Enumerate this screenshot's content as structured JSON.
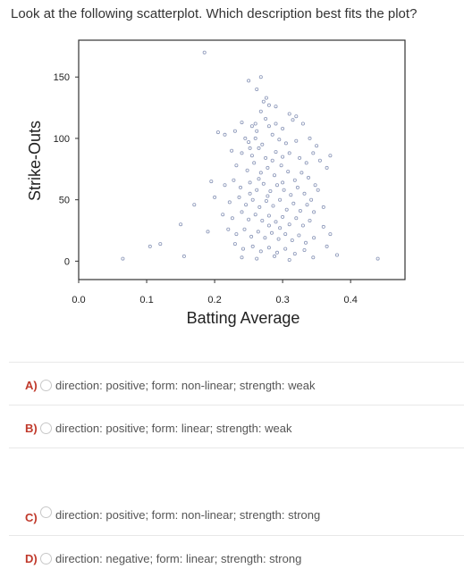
{
  "question": "Look at the following scatterplot. Which description best fits the plot?",
  "chart_data": {
    "type": "scatter",
    "xlabel": "Batting Average",
    "ylabel": "Strike-Outs",
    "xlim": [
      0.0,
      0.48
    ],
    "ylim": [
      -15,
      180
    ],
    "x_ticks": [
      "0.0",
      "0.1",
      "0.2",
      "0.3",
      "0.4"
    ],
    "y_ticks": [
      "0",
      "50",
      "100",
      "150"
    ],
    "grid": false,
    "marker_color": "#8a96b8",
    "points": [
      [
        0.185,
        170
      ],
      [
        0.25,
        147
      ],
      [
        0.268,
        150
      ],
      [
        0.262,
        140
      ],
      [
        0.276,
        133
      ],
      [
        0.272,
        130
      ],
      [
        0.28,
        127
      ],
      [
        0.268,
        122
      ],
      [
        0.29,
        126
      ],
      [
        0.31,
        120
      ],
      [
        0.32,
        118
      ],
      [
        0.33,
        112
      ],
      [
        0.24,
        113
      ],
      [
        0.255,
        110
      ],
      [
        0.26,
        112
      ],
      [
        0.275,
        116
      ],
      [
        0.28,
        110
      ],
      [
        0.29,
        112
      ],
      [
        0.3,
        108
      ],
      [
        0.315,
        115
      ],
      [
        0.205,
        105
      ],
      [
        0.215,
        103
      ],
      [
        0.23,
        106
      ],
      [
        0.245,
        100
      ],
      [
        0.25,
        97
      ],
      [
        0.26,
        100
      ],
      [
        0.27,
        95
      ],
      [
        0.285,
        103
      ],
      [
        0.295,
        99
      ],
      [
        0.305,
        96
      ],
      [
        0.32,
        98
      ],
      [
        0.34,
        100
      ],
      [
        0.35,
        94
      ],
      [
        0.37,
        86
      ],
      [
        0.225,
        90
      ],
      [
        0.24,
        88
      ],
      [
        0.255,
        86
      ],
      [
        0.265,
        92
      ],
      [
        0.275,
        84
      ],
      [
        0.29,
        89
      ],
      [
        0.3,
        85
      ],
      [
        0.31,
        88
      ],
      [
        0.325,
        84
      ],
      [
        0.335,
        80
      ],
      [
        0.345,
        88
      ],
      [
        0.355,
        82
      ],
      [
        0.365,
        76
      ],
      [
        0.232,
        78
      ],
      [
        0.248,
        74
      ],
      [
        0.258,
        80
      ],
      [
        0.268,
        72
      ],
      [
        0.278,
        76
      ],
      [
        0.288,
        70
      ],
      [
        0.298,
        78
      ],
      [
        0.308,
        73
      ],
      [
        0.318,
        66
      ],
      [
        0.328,
        72
      ],
      [
        0.338,
        68
      ],
      [
        0.348,
        62
      ],
      [
        0.195,
        65
      ],
      [
        0.215,
        62
      ],
      [
        0.228,
        66
      ],
      [
        0.238,
        60
      ],
      [
        0.252,
        64
      ],
      [
        0.262,
        58
      ],
      [
        0.272,
        63
      ],
      [
        0.282,
        57
      ],
      [
        0.292,
        62
      ],
      [
        0.302,
        58
      ],
      [
        0.312,
        54
      ],
      [
        0.322,
        60
      ],
      [
        0.332,
        55
      ],
      [
        0.342,
        50
      ],
      [
        0.352,
        58
      ],
      [
        0.17,
        46
      ],
      [
        0.2,
        52
      ],
      [
        0.222,
        48
      ],
      [
        0.236,
        52
      ],
      [
        0.246,
        46
      ],
      [
        0.256,
        50
      ],
      [
        0.266,
        44
      ],
      [
        0.276,
        49
      ],
      [
        0.286,
        45
      ],
      [
        0.296,
        50
      ],
      [
        0.306,
        42
      ],
      [
        0.316,
        47
      ],
      [
        0.326,
        41
      ],
      [
        0.336,
        46
      ],
      [
        0.346,
        40
      ],
      [
        0.36,
        44
      ],
      [
        0.212,
        38
      ],
      [
        0.226,
        35
      ],
      [
        0.24,
        40
      ],
      [
        0.25,
        34
      ],
      [
        0.26,
        38
      ],
      [
        0.27,
        33
      ],
      [
        0.28,
        37
      ],
      [
        0.29,
        32
      ],
      [
        0.3,
        36
      ],
      [
        0.31,
        30
      ],
      [
        0.32,
        35
      ],
      [
        0.33,
        29
      ],
      [
        0.34,
        33
      ],
      [
        0.36,
        28
      ],
      [
        0.15,
        30
      ],
      [
        0.19,
        24
      ],
      [
        0.22,
        26
      ],
      [
        0.232,
        22
      ],
      [
        0.244,
        26
      ],
      [
        0.254,
        20
      ],
      [
        0.264,
        24
      ],
      [
        0.274,
        19
      ],
      [
        0.284,
        23
      ],
      [
        0.294,
        18
      ],
      [
        0.304,
        22
      ],
      [
        0.314,
        17
      ],
      [
        0.324,
        21
      ],
      [
        0.334,
        15
      ],
      [
        0.346,
        19
      ],
      [
        0.37,
        22
      ],
      [
        0.23,
        14
      ],
      [
        0.242,
        10
      ],
      [
        0.256,
        12
      ],
      [
        0.268,
        8
      ],
      [
        0.28,
        11
      ],
      [
        0.292,
        7
      ],
      [
        0.304,
        10
      ],
      [
        0.318,
        6
      ],
      [
        0.332,
        9
      ],
      [
        0.365,
        12
      ],
      [
        0.24,
        3
      ],
      [
        0.262,
        2
      ],
      [
        0.288,
        4
      ],
      [
        0.31,
        1
      ],
      [
        0.345,
        3
      ],
      [
        0.38,
        5
      ],
      [
        0.12,
        14
      ],
      [
        0.105,
        12
      ],
      [
        0.065,
        2
      ],
      [
        0.155,
        4
      ],
      [
        0.44,
        2
      ],
      [
        0.252,
        55
      ],
      [
        0.265,
        67
      ],
      [
        0.278,
        53
      ],
      [
        0.285,
        82
      ],
      [
        0.262,
        106
      ],
      [
        0.252,
        92
      ],
      [
        0.3,
        64
      ],
      [
        0.28,
        29
      ],
      [
        0.296,
        27
      ]
    ]
  },
  "options": [
    {
      "letter": "A)",
      "text": "direction: positive; form: non-linear; strength: weak"
    },
    {
      "letter": "B)",
      "text": "direction: positive; form: linear; strength: weak"
    },
    {
      "letter": "C)",
      "text": "direction: positive; form: non-linear; strength: strong"
    },
    {
      "letter": "D)",
      "text": "direction: negative; form: linear; strength: strong"
    }
  ]
}
